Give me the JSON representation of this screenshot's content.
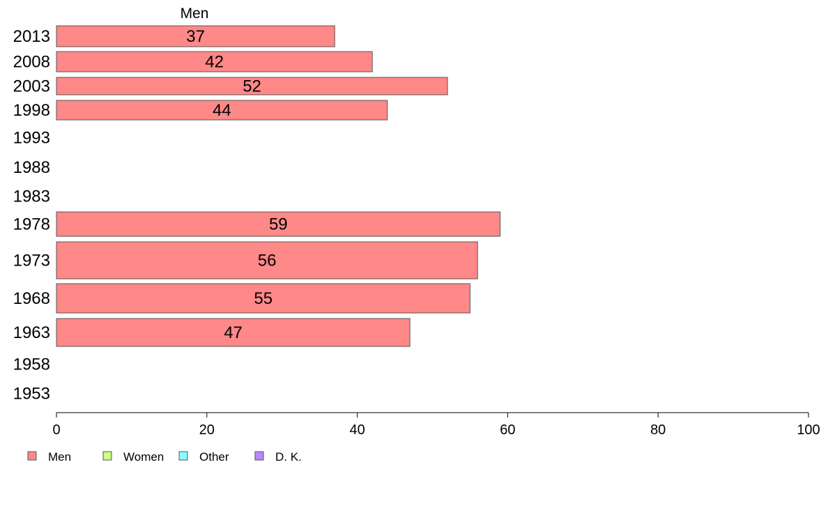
{
  "chart_data": {
    "type": "bar",
    "orientation": "horizontal",
    "series_title": "Men",
    "categories": [
      "2013",
      "2008",
      "2003",
      "1998",
      "1993",
      "1988",
      "1983",
      "1978",
      "1973",
      "1968",
      "1963",
      "1958",
      "1953"
    ],
    "series": [
      {
        "name": "Men",
        "values": [
          37,
          42,
          52,
          44,
          null,
          null,
          null,
          59,
          56,
          55,
          47,
          null,
          null
        ]
      }
    ],
    "xlim": [
      0,
      100
    ],
    "xticks": [
      0,
      20,
      40,
      60,
      80,
      100
    ],
    "grid": false,
    "legend": {
      "placement": "bottom-left",
      "entries": [
        {
          "label": "Men",
          "color": "#ff8888"
        },
        {
          "label": "Women",
          "color": "#ccff88"
        },
        {
          "label": "Other",
          "color": "#88ffff"
        },
        {
          "label": "D. K.",
          "color": "#bb88ff"
        }
      ]
    },
    "bar_color": "#ff8888",
    "bar_border_color": "#555555"
  }
}
